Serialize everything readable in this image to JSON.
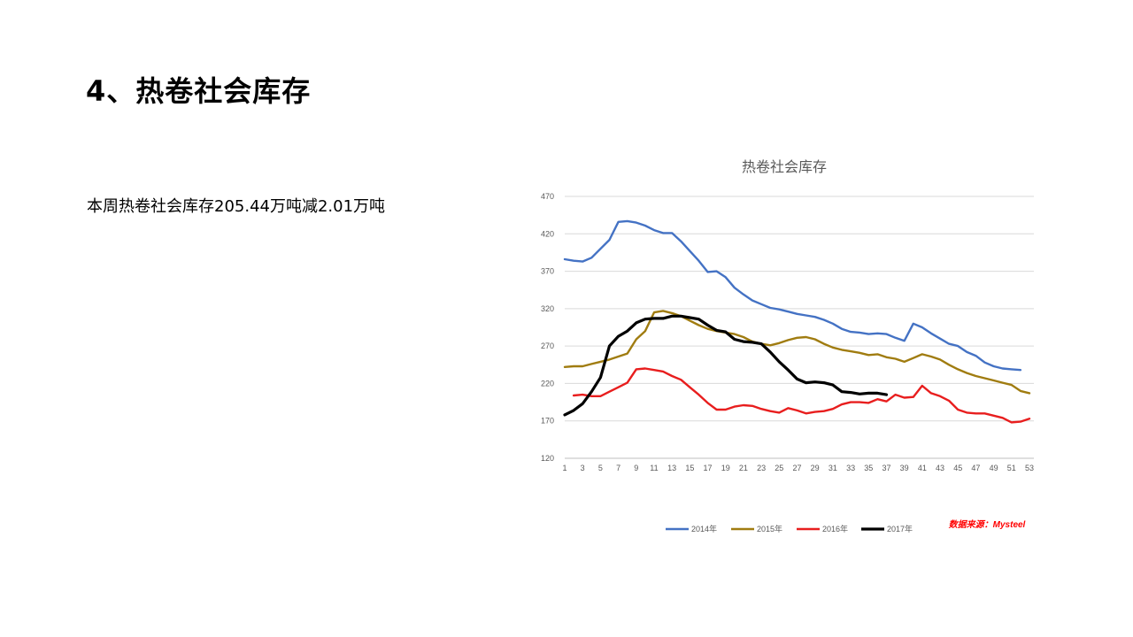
{
  "slide": {
    "title": "4、热卷社会库存",
    "summary": "本周热卷社会库存205.44万吨减2.01万吨"
  },
  "chart_data": {
    "type": "line",
    "title": "热卷社会库存",
    "source_note": "数据来源：Mysteel",
    "ylim": [
      120,
      470
    ],
    "yticks": [
      120,
      170,
      220,
      270,
      320,
      370,
      420,
      470
    ],
    "xlim": [
      1,
      53
    ],
    "xticks": [
      1,
      3,
      5,
      7,
      9,
      11,
      13,
      15,
      17,
      19,
      21,
      23,
      25,
      27,
      29,
      31,
      33,
      35,
      37,
      39,
      41,
      43,
      45,
      47,
      49,
      51,
      53
    ],
    "grid": true,
    "legend_position": "bottom",
    "series": [
      {
        "name": "2014年",
        "color": "#4472C4",
        "x_start": 1,
        "values": [
          386,
          384,
          383,
          388,
          400,
          412,
          436,
          437,
          435,
          431,
          425,
          421,
          421,
          410,
          397,
          384,
          369,
          370,
          362,
          348,
          339,
          331,
          326,
          321,
          319,
          316,
          313,
          311,
          309,
          305,
          300,
          293,
          289,
          288,
          286,
          287,
          286,
          281,
          277,
          300,
          295,
          287,
          280,
          273,
          270,
          262,
          257,
          248,
          243,
          240,
          239,
          238
        ]
      },
      {
        "name": "2015年",
        "color": "#A07C10",
        "x_start": 1,
        "values": [
          242,
          243,
          243,
          246,
          249,
          252,
          256,
          260,
          279,
          290,
          315,
          317,
          314,
          310,
          304,
          298,
          293,
          290,
          288,
          286,
          282,
          276,
          273,
          271,
          274,
          278,
          281,
          282,
          279,
          273,
          268,
          265,
          263,
          261,
          258,
          259,
          255,
          253,
          249,
          254,
          259,
          256,
          252,
          245,
          239,
          234,
          230,
          227,
          224,
          221,
          218,
          210,
          207
        ]
      },
      {
        "name": "2016年",
        "color": "#E81E1E",
        "x_start": 2,
        "values": [
          204,
          205,
          203,
          203,
          209,
          215,
          221,
          239,
          240,
          238,
          236,
          230,
          225,
          215,
          205,
          194,
          185,
          185,
          189,
          191,
          190,
          186,
          183,
          181,
          187,
          184,
          180,
          182,
          183,
          186,
          192,
          195,
          195,
          194,
          199,
          196,
          205,
          201,
          202,
          217,
          207,
          203,
          197,
          185,
          181,
          180,
          180,
          177,
          174,
          168,
          169,
          173
        ]
      },
      {
        "name": "2017年",
        "color": "#000000",
        "x_start": 1,
        "values": [
          178,
          184,
          193,
          209,
          228,
          270,
          283,
          290,
          301,
          306,
          307,
          307,
          310,
          310,
          308,
          306,
          298,
          291,
          289,
          279,
          276,
          275,
          273,
          262,
          249,
          238,
          226,
          221,
          222,
          221,
          218,
          209,
          208,
          206,
          207,
          207,
          205
        ]
      }
    ]
  }
}
